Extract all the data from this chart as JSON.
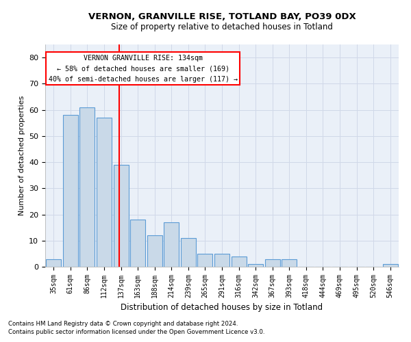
{
  "title1": "VERNON, GRANVILLE RISE, TOTLAND BAY, PO39 0DX",
  "title2": "Size of property relative to detached houses in Totland",
  "xlabel": "Distribution of detached houses by size in Totland",
  "ylabel": "Number of detached properties",
  "categories": [
    "35sqm",
    "61sqm",
    "86sqm",
    "112sqm",
    "137sqm",
    "163sqm",
    "188sqm",
    "214sqm",
    "239sqm",
    "265sqm",
    "291sqm",
    "316sqm",
    "342sqm",
    "367sqm",
    "393sqm",
    "418sqm",
    "444sqm",
    "469sqm",
    "495sqm",
    "520sqm",
    "546sqm"
  ],
  "values": [
    3,
    58,
    61,
    57,
    39,
    18,
    12,
    17,
    11,
    5,
    5,
    4,
    1,
    3,
    3,
    0,
    0,
    0,
    0,
    0,
    1
  ],
  "bar_color": "#c9d9e8",
  "bar_edge_color": "#5b9bd5",
  "property_line_label": "VERNON GRANVILLE RISE: 134sqm",
  "annotation_line1": "← 58% of detached houses are smaller (169)",
  "annotation_line2": "40% of semi-detached houses are larger (117) →",
  "vline_color": "red",
  "footnote1": "Contains HM Land Registry data © Crown copyright and database right 2024.",
  "footnote2": "Contains public sector information licensed under the Open Government Licence v3.0.",
  "ylim": [
    0,
    85
  ],
  "yticks": [
    0,
    10,
    20,
    30,
    40,
    50,
    60,
    70,
    80
  ],
  "grid_color": "#d0d8e8",
  "background_color": "#eaf0f8"
}
